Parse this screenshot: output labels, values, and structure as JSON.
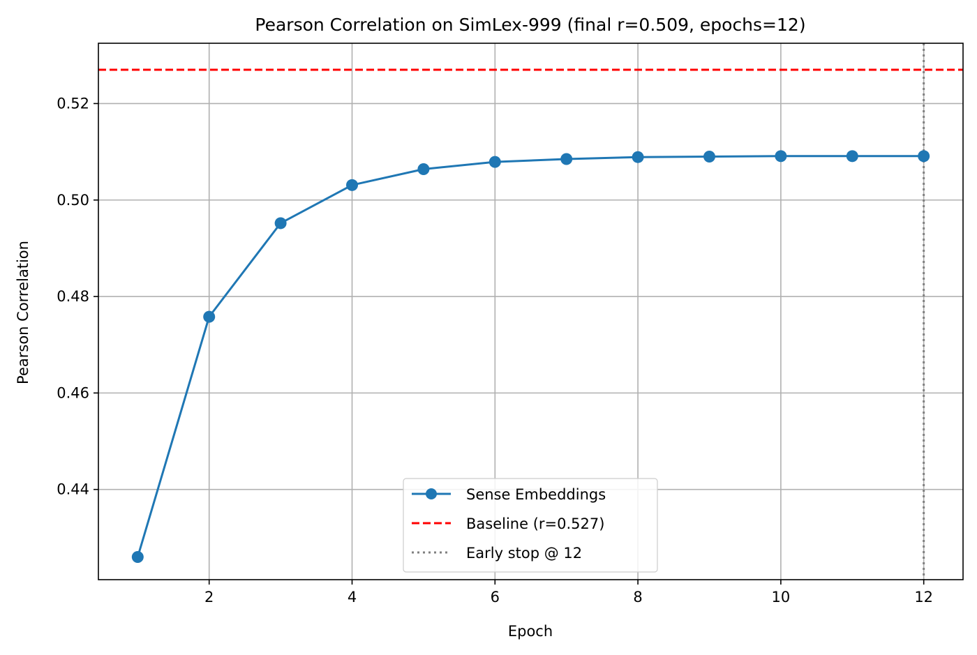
{
  "chart_data": {
    "type": "line",
    "title": "Pearson Correlation on SimLex-999 (final r=0.509, epochs=12)",
    "xlabel": "Epoch",
    "ylabel": "Pearson Correlation",
    "xlim": [
      0.45,
      12.55
    ],
    "ylim": [
      0.4213,
      0.5325
    ],
    "xticks": [
      2,
      4,
      6,
      8,
      10,
      12
    ],
    "yticks": [
      0.44,
      0.46,
      0.48,
      0.5,
      0.52
    ],
    "grid": true,
    "legend_position": "lower-center",
    "series": [
      {
        "name": "Sense Embeddings",
        "color": "#1f77b4",
        "style": "solid-with-markers",
        "x": [
          1,
          2,
          3,
          4,
          5,
          6,
          7,
          8,
          9,
          10,
          11,
          12
        ],
        "y": [
          0.426,
          0.4758,
          0.4952,
          0.5031,
          0.5064,
          0.5079,
          0.5085,
          0.5089,
          0.509,
          0.5091,
          0.5091,
          0.5091
        ]
      }
    ],
    "baseline": {
      "name": "Baseline (r=0.527)",
      "value": 0.527,
      "color": "#ff0000",
      "style": "dashed"
    },
    "early_stop": {
      "name": "Early stop @ 12",
      "epoch": 12,
      "color": "#808080",
      "style": "dotted"
    }
  }
}
